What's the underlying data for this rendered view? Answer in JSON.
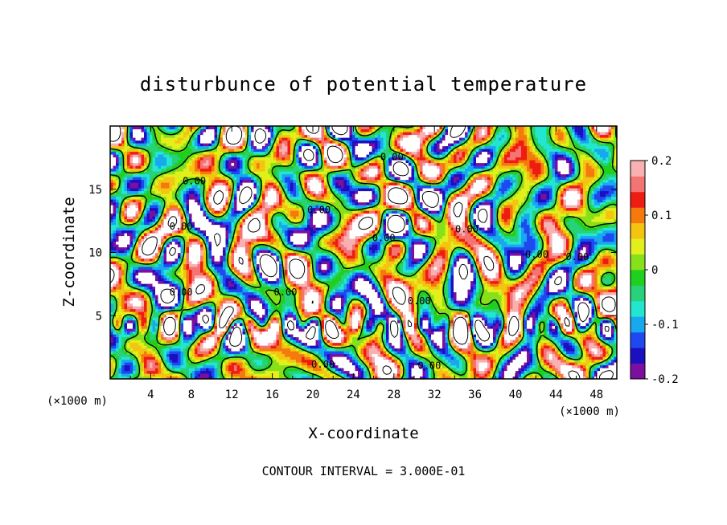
{
  "chart_data": {
    "type": "heatmap",
    "title": "disturbunce of potential temperature",
    "xlabel": "X-coordinate",
    "ylabel": "Z-coordinate",
    "x_unit": "(×1000 m)",
    "y_unit": "(×1000 m)",
    "xlim": [
      0,
      50
    ],
    "ylim": [
      0,
      20
    ],
    "x_ticks": [
      "4",
      "8",
      "12",
      "16",
      "20",
      "24",
      "28",
      "32",
      "36",
      "40",
      "44",
      "48"
    ],
    "y_ticks": [
      "5",
      "10",
      "15"
    ],
    "x_tick_values": [
      4,
      8,
      12,
      16,
      20,
      24,
      28,
      32,
      36,
      40,
      44,
      48
    ],
    "y_tick_values": [
      5,
      10,
      15
    ],
    "colorbar": {
      "range": [
        -0.2,
        0.2
      ],
      "tick_labels": [
        "0.2",
        "0.1",
        "0",
        "-0.1",
        "-0.2"
      ],
      "tick_values": [
        0.2,
        0.1,
        0,
        -0.1,
        -0.2
      ],
      "colors": [
        "#7b0fa0",
        "#1c0fbf",
        "#1f49f0",
        "#18a8ee",
        "#22e6d0",
        "#27d27a",
        "#1fd01e",
        "#86e01a",
        "#e3ef1a",
        "#f3c512",
        "#f57a0e",
        "#ee1c12",
        "#f47373",
        "#f8b0b0"
      ]
    },
    "contour_labels": [
      {
        "text": "0.00",
        "x": 8.3,
        "y": 15.4
      },
      {
        "text": "0.00",
        "x": 7.0,
        "y": 11.8
      },
      {
        "text": "0.00",
        "x": 7.0,
        "y": 6.6
      },
      {
        "text": "0.00",
        "x": 17.3,
        "y": 6.6
      },
      {
        "text": "0.00",
        "x": 20.6,
        "y": 13.1
      },
      {
        "text": "0.00",
        "x": 27.0,
        "y": 10.9
      },
      {
        "text": "0.00",
        "x": 27.8,
        "y": 17.3
      },
      {
        "text": "0.00",
        "x": 35.2,
        "y": 11.6
      },
      {
        "text": "0.00",
        "x": 42.1,
        "y": 9.6
      },
      {
        "text": "0.00",
        "x": 46.1,
        "y": 9.4
      },
      {
        "text": "0.00",
        "x": 30.5,
        "y": 5.9
      },
      {
        "text": "0.00",
        "x": 21.0,
        "y": 0.9
      },
      {
        "text": "0.00",
        "x": 31.5,
        "y": 0.8
      }
    ],
    "footnote": "CONTOUR INTERVAL = 3.000E-01"
  }
}
